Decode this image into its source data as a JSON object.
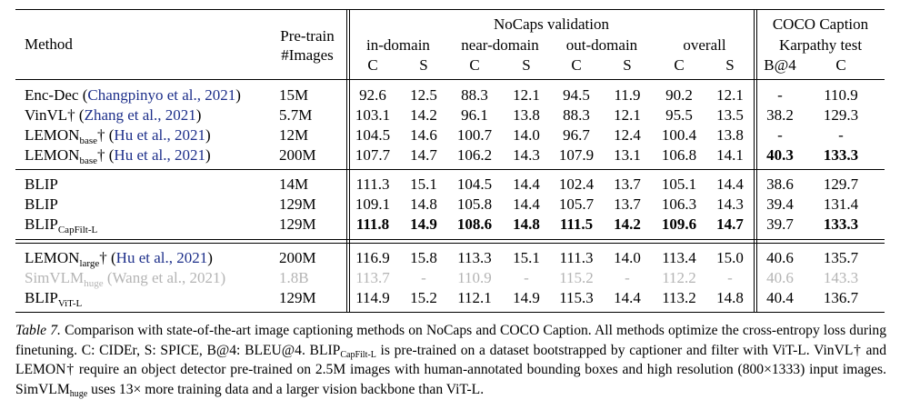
{
  "header": {
    "method": "Method",
    "pretrain_line1": "Pre-train",
    "pretrain_line2": "#Images",
    "nocaps_title": "NoCaps validation",
    "groups": [
      "in-domain",
      "near-domain",
      "out-domain",
      "overall"
    ],
    "coco_line1": "COCO Caption",
    "coco_line2": "Karpathy test",
    "metric_c": "C",
    "metric_s": "S",
    "metric_b4": "B@4"
  },
  "rows": [
    {
      "name": "Enc-Dec",
      "sub": "",
      "dagger": "",
      "cite": "Changpinyo et al., 2021",
      "images": "15M",
      "vals": [
        "92.6",
        "12.5",
        "88.3",
        "12.1",
        "94.5",
        "11.9",
        "90.2",
        "12.1",
        "-",
        "110.9"
      ],
      "bold": [],
      "gray": false
    },
    {
      "name": "VinVL",
      "sub": "",
      "dagger": "†",
      "cite": "Zhang et al., 2021",
      "images": "5.7M",
      "vals": [
        "103.1",
        "14.2",
        "96.1",
        "13.8",
        "88.3",
        "12.1",
        "95.5",
        "13.5",
        "38.2",
        "129.3"
      ],
      "bold": [],
      "gray": false
    },
    {
      "name": "LEMON",
      "sub": "base",
      "dagger": "†",
      "cite": "Hu et al., 2021",
      "images": "12M",
      "vals": [
        "104.5",
        "14.6",
        "100.7",
        "14.0",
        "96.7",
        "12.4",
        "100.4",
        "13.8",
        "-",
        "-"
      ],
      "bold": [],
      "gray": false
    },
    {
      "name": "LEMON",
      "sub": "base",
      "dagger": "†",
      "cite": "Hu et al., 2021",
      "images": "200M",
      "vals": [
        "107.7",
        "14.7",
        "106.2",
        "14.3",
        "107.9",
        "13.1",
        "106.8",
        "14.1",
        "40.3",
        "133.3"
      ],
      "bold": [
        8,
        9
      ],
      "gray": false
    },
    {
      "name": "BLIP",
      "sub": "",
      "dagger": "",
      "cite": "",
      "images": "14M",
      "vals": [
        "111.3",
        "15.1",
        "104.5",
        "14.4",
        "102.4",
        "13.7",
        "105.1",
        "14.4",
        "38.6",
        "129.7"
      ],
      "bold": [],
      "gray": false
    },
    {
      "name": "BLIP",
      "sub": "",
      "dagger": "",
      "cite": "",
      "images": "129M",
      "vals": [
        "109.1",
        "14.8",
        "105.8",
        "14.4",
        "105.7",
        "13.7",
        "106.3",
        "14.3",
        "39.4",
        "131.4"
      ],
      "bold": [],
      "gray": false
    },
    {
      "name": "BLIP",
      "sub": "CapFilt-L",
      "dagger": "",
      "cite": "",
      "images": "129M",
      "vals": [
        "111.8",
        "14.9",
        "108.6",
        "14.8",
        "111.5",
        "14.2",
        "109.6",
        "14.7",
        "39.7",
        "133.3"
      ],
      "bold": [
        0,
        1,
        2,
        3,
        4,
        5,
        6,
        7,
        9
      ],
      "gray": false
    },
    {
      "name": "LEMON",
      "sub": "large",
      "dagger": "†",
      "cite": "Hu et al., 2021",
      "images": "200M",
      "vals": [
        "116.9",
        "15.8",
        "113.3",
        "15.1",
        "111.3",
        "14.0",
        "113.4",
        "15.0",
        "40.6",
        "135.7"
      ],
      "bold": [],
      "gray": false
    },
    {
      "name": "SimVLM",
      "sub": "huge",
      "dagger": "",
      "cite": "Wang et al., 2021",
      "images": "1.8B",
      "vals": [
        "113.7",
        "-",
        "110.9",
        "-",
        "115.2",
        "-",
        "112.2",
        "-",
        "40.6",
        "143.3"
      ],
      "bold": [],
      "gray": true
    },
    {
      "name": "BLIP",
      "sub": "ViT-L",
      "dagger": "",
      "cite": "",
      "images": "129M",
      "vals": [
        "114.9",
        "15.2",
        "112.1",
        "14.9",
        "115.3",
        "14.4",
        "113.2",
        "14.8",
        "40.4",
        "136.7"
      ],
      "bold": [],
      "gray": false
    }
  ],
  "caption": {
    "label": "Table 7.",
    "t1": "Comparison with state-of-the-art image captioning methods on NoCaps and COCO Caption. All methods optimize the cross-entropy loss during finetuning. C: CIDEr, S: SPICE, B@4: BLEU@4. BLIP",
    "sub1": "CapFilt-L",
    "t2": " is pre-trained on a dataset bootstrapped by captioner and filter with ViT-L. VinVL† and LEMON† require an object detector pre-trained on 2.5M images with human-annotated bounding boxes and high resolution (800×1333) input images. SimVLM",
    "sub2": "huge",
    "t3": " uses 13× more training data and a larger vision backbone than ViT-L."
  }
}
